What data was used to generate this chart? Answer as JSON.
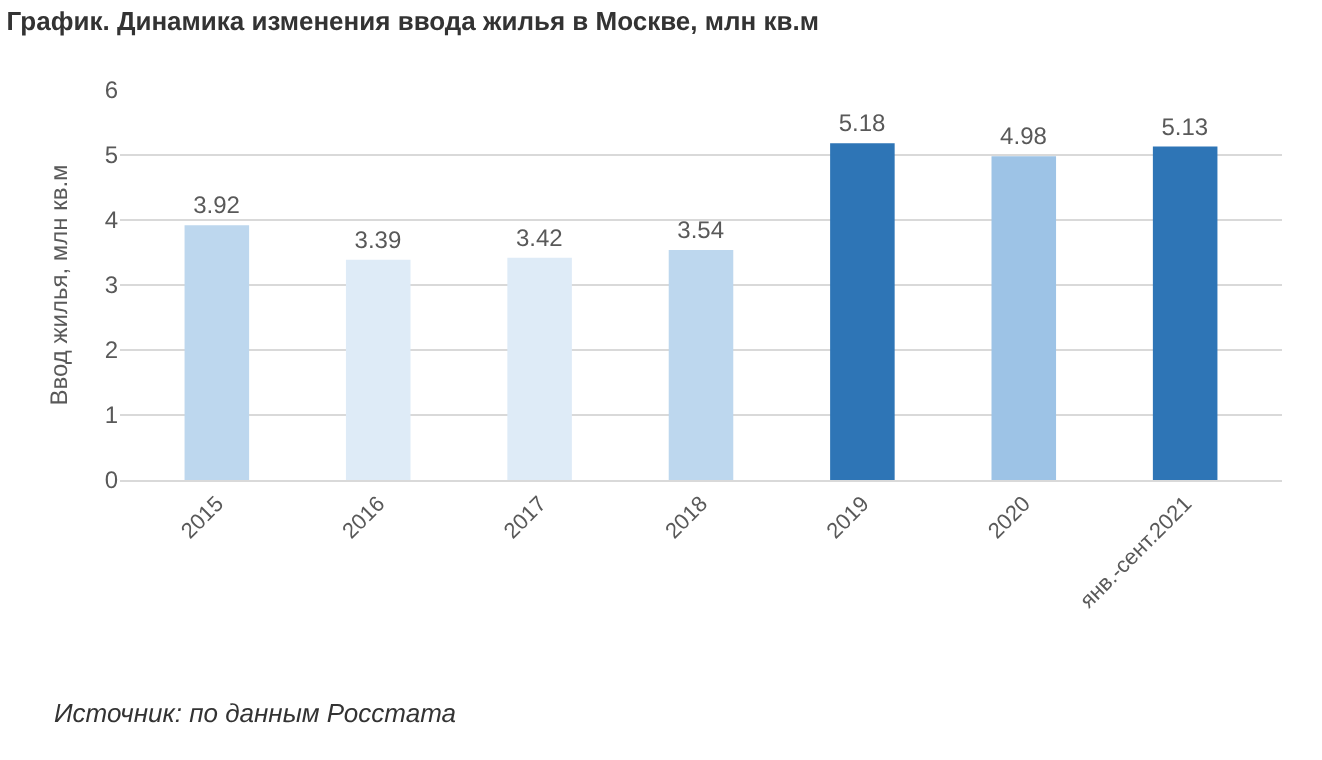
{
  "chart_data": {
    "type": "bar",
    "title": "График. Динамика изменения ввода жилья в Москве, млн кв.м",
    "ylabel": "Ввод жилья, млн кв.м",
    "categories": [
      "2015",
      "2016",
      "2017",
      "2018",
      "2019",
      "2020",
      "янв.-сент.2021"
    ],
    "values": [
      3.92,
      3.39,
      3.42,
      3.54,
      5.18,
      4.98,
      5.13
    ],
    "colors": [
      "#bdd7ee",
      "#deebf7",
      "#deebf7",
      "#bdd7ee",
      "#2e75b6",
      "#9dc3e6",
      "#2e75b6"
    ],
    "ylim": [
      0,
      6
    ],
    "yticks": [
      0,
      1,
      2,
      3,
      4,
      5,
      6
    ],
    "grid": "y",
    "data_labels": true,
    "annotations": [
      "Источник: по данным Росстата"
    ]
  }
}
